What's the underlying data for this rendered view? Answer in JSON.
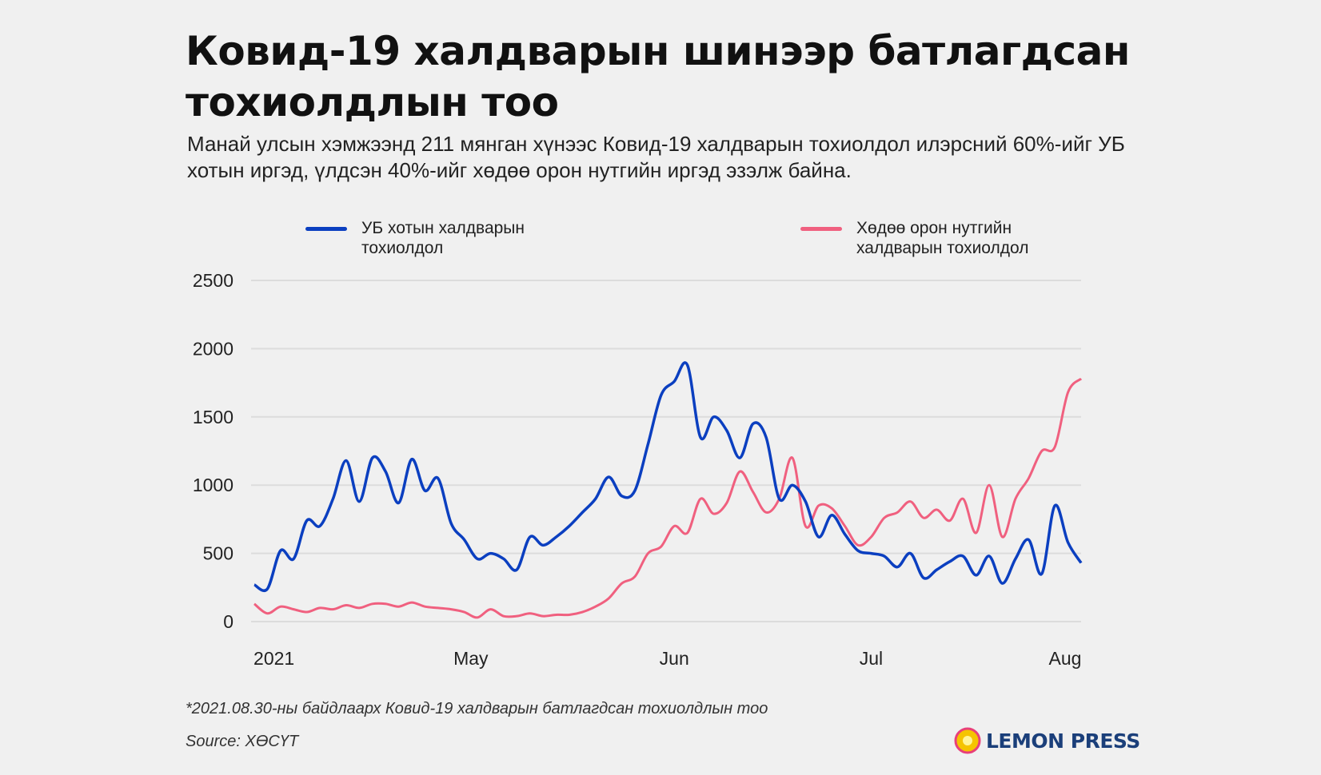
{
  "title": "Ковид-19 халдварын шинээр батлагдсан тохиолдлын тоо",
  "subtitle": "Манай улсын хэмжээнд 211 мянган хүнээс Ковид-19 халдварын тохиолдол илэрсний 60%-ийг УБ хотын иргэд, үлдсэн 40%-ийг хөдөө орон нутгийн иргэд эзэлж байна.",
  "footnote": "*2021.08.30-ны байдлаарх Ковид-19 халдварын батлагдсан тохиолдлын тоо",
  "source": "Source: ХӨСҮТ",
  "logo": "LEMON PRESS",
  "chart_data": {
    "type": "line",
    "title": "Ковид-19 халдварын шинээр батлагдсан тохиолдлын тоо",
    "xlabel": "",
    "ylabel": "",
    "ylim": [
      0,
      2500
    ],
    "yticks": [
      "0",
      "500",
      "1000",
      "1500",
      "2000",
      "2500"
    ],
    "ytick_values": [
      0,
      500,
      1000,
      1500,
      2000,
      2500
    ],
    "xticks": [
      {
        "label": "2021",
        "date": "2021-04-01"
      },
      {
        "label": "May",
        "date": "2021-05-01"
      },
      {
        "label": "Jun",
        "date": "2021-06-01"
      },
      {
        "label": "Jul",
        "date": "2021-07-01"
      },
      {
        "label": "Aug",
        "date": "2021-08-01"
      }
    ],
    "x_start": "2021-03-29",
    "x_step_days": 2,
    "grid": true,
    "legend": "top",
    "series": [
      {
        "name": "УБ хотын халдварын тохиолдол",
        "color": "#0b3fc0",
        "values": [
          270,
          240,
          520,
          460,
          740,
          700,
          900,
          1180,
          880,
          1200,
          1100,
          870,
          1190,
          960,
          1050,
          720,
          600,
          460,
          500,
          460,
          380,
          620,
          560,
          620,
          700,
          800,
          900,
          1060,
          920,
          960,
          1300,
          1660,
          1760,
          1880,
          1350,
          1500,
          1400,
          1200,
          1450,
          1350,
          900,
          1000,
          880,
          620,
          780,
          640,
          520,
          500,
          480,
          400,
          500,
          320,
          380,
          440,
          480,
          340,
          480,
          280,
          460,
          600,
          350,
          850,
          580,
          430
        ]
      },
      {
        "name": "Хөдөө орон нутгийн халдварын тохиолдол",
        "color": "#f0607f",
        "values": [
          130,
          60,
          110,
          90,
          70,
          100,
          90,
          120,
          100,
          130,
          130,
          110,
          140,
          110,
          100,
          90,
          70,
          30,
          90,
          40,
          40,
          60,
          40,
          50,
          50,
          70,
          110,
          170,
          280,
          330,
          500,
          550,
          700,
          650,
          900,
          790,
          870,
          1100,
          950,
          800,
          900,
          1200,
          700,
          850,
          830,
          700,
          560,
          620,
          760,
          800,
          880,
          760,
          820,
          740,
          900,
          650,
          1000,
          620,
          900,
          1050,
          1250,
          1280,
          1680,
          1780
        ]
      }
    ]
  }
}
